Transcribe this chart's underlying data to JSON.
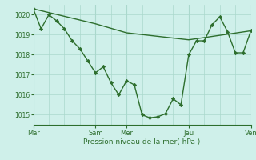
{
  "xlabel": "Pression niveau de la mer( hPa )",
  "background_color": "#cff0ea",
  "grid_color": "#aad8cc",
  "line_color": "#2d6e2d",
  "ylim": [
    1014.5,
    1020.5
  ],
  "day_labels": [
    "Mar",
    "Sam",
    "Mer",
    "Jeu",
    "Ven"
  ],
  "day_positions": [
    0,
    48,
    72,
    120,
    168
  ],
  "yticks": [
    1015,
    1016,
    1017,
    1018,
    1019,
    1020
  ],
  "series1_x": [
    0,
    6,
    12,
    18,
    24,
    30,
    36,
    42,
    48,
    54,
    60,
    66,
    72,
    78,
    84,
    90,
    96,
    102,
    108,
    114,
    120,
    126,
    132,
    138,
    144,
    150,
    156,
    162,
    168
  ],
  "series1_y": [
    1020.3,
    1019.3,
    1020.0,
    1019.7,
    1019.3,
    1018.7,
    1018.3,
    1017.7,
    1017.1,
    1017.4,
    1016.6,
    1016.0,
    1016.7,
    1016.5,
    1015.0,
    1014.85,
    1014.9,
    1015.05,
    1015.8,
    1015.5,
    1018.0,
    1018.7,
    1018.7,
    1019.5,
    1019.9,
    1019.15,
    1018.1,
    1018.1,
    1019.2
  ],
  "series2_x": [
    0,
    48,
    72,
    120,
    168
  ],
  "series2_y": [
    1020.3,
    1019.55,
    1019.1,
    1018.75,
    1019.2
  ]
}
